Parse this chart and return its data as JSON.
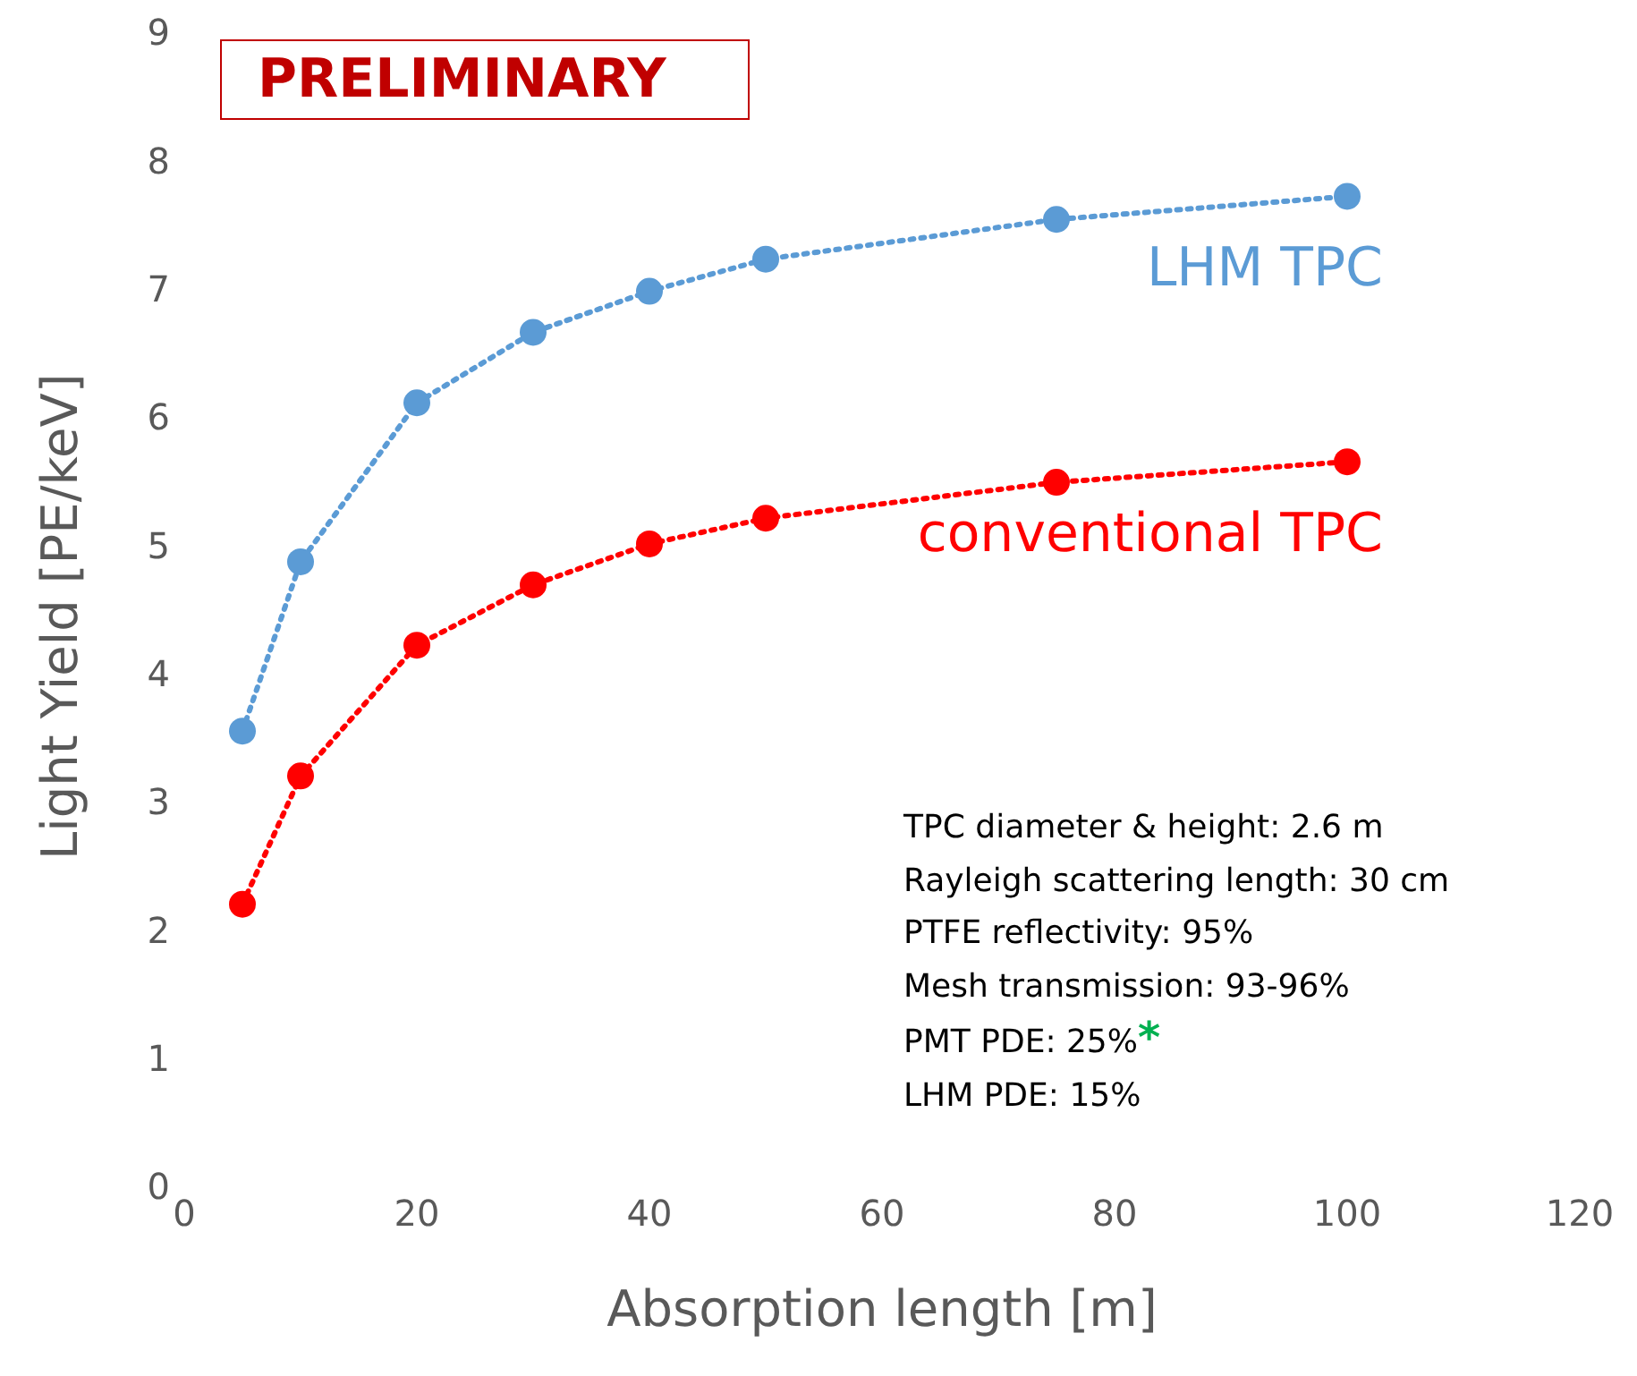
{
  "chart_data": {
    "type": "line",
    "title": "PRELIMINARY",
    "xlabel": "Absorption length [m]",
    "ylabel": "Light Yield [PE/keV]",
    "x": [
      5,
      10,
      20,
      30,
      40,
      50,
      75,
      100
    ],
    "series": [
      {
        "name": "LHM TPC",
        "color": "#5b9bd5",
        "values": [
          3.55,
          4.87,
          6.11,
          6.66,
          6.98,
          7.23,
          7.54,
          7.72
        ]
      },
      {
        "name": "conventional TPC",
        "color": "#ff0000",
        "values": [
          2.2,
          3.2,
          4.22,
          4.69,
          5.01,
          5.21,
          5.49,
          5.65
        ]
      }
    ],
    "xlim": [
      0,
      120
    ],
    "xticks": [
      0,
      20,
      40,
      60,
      80,
      100,
      120
    ],
    "ylim": [
      0,
      9
    ],
    "yticks": [
      0,
      1,
      2,
      3,
      4,
      5,
      6,
      7,
      8,
      9
    ],
    "grid": false,
    "legend": false,
    "marker": "circle",
    "line_style": "dotted",
    "annotations": [
      "TPC diameter & height: 2.6 m",
      "Rayleigh scattering length: 30 cm",
      "PTFE reflectivity: 95%",
      "Mesh transmission: 93-96%",
      "PMT PDE: 25%*",
      "LHM PDE: 15%"
    ]
  }
}
